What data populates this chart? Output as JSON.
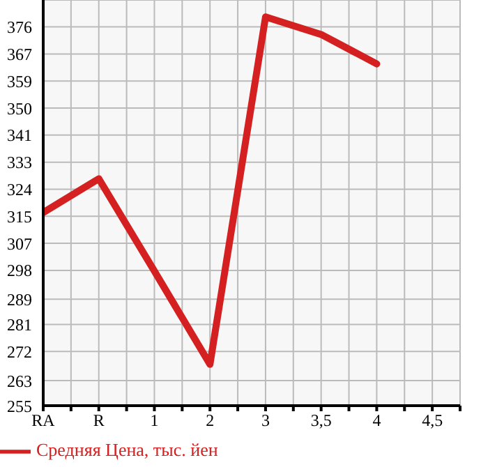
{
  "chart_data": {
    "type": "line",
    "categories": [
      "RA",
      "R",
      "1",
      "2",
      "3",
      "3,5",
      "4",
      "4,5"
    ],
    "series": [
      {
        "name": "Средняя Цена, тыс. йен",
        "color": "#d42020",
        "values": [
          316.7,
          327.5,
          298,
          268.2,
          379.2,
          373.6,
          364.2,
          null
        ]
      }
    ],
    "ylim": [
      255,
      384.6
    ],
    "yticks": [
      255,
      263,
      {
        "value": 272.29,
        "label": "272"
      },
      {
        "value": 280.93,
        "label": "281"
      },
      289,
      {
        "value": 298.21,
        "label": "298"
      },
      {
        "value": 306.86,
        "label": "307"
      },
      {
        "value": 315.5,
        "label": "315"
      },
      {
        "value": 324.14,
        "label": "324"
      },
      {
        "value": 332.79,
        "label": "333"
      },
      {
        "value": 341.43,
        "label": "341"
      },
      {
        "value": 350.07,
        "label": "350"
      },
      {
        "value": 358.71,
        "label": "359"
      },
      {
        "value": 367.36,
        "label": "367"
      },
      376
    ],
    "grid": true,
    "legend": "bottom left",
    "marker": "none",
    "line_style": "solid"
  }
}
